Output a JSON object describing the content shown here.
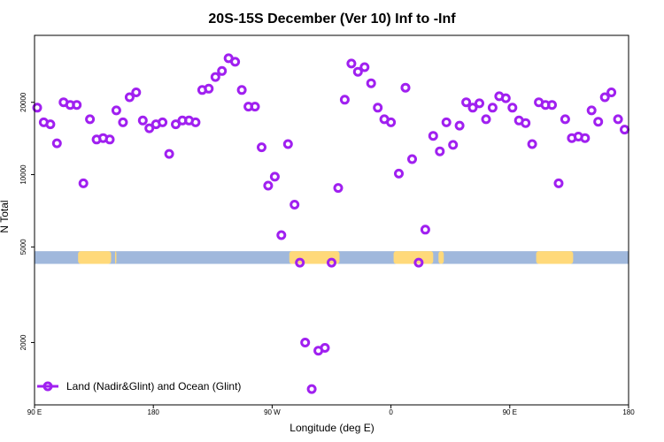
{
  "chart_data": {
    "type": "scatter",
    "title": "20S-15S December (Ver 10)   Inf to -Inf",
    "xlabel": "Longitude (deg E)",
    "ylabel": "N Total",
    "x_ticks": [
      {
        "value": 90,
        "label": "90 E"
      },
      {
        "value": 180,
        "label": "180"
      },
      {
        "value": 270,
        "label": "90 W"
      },
      {
        "value": 360,
        "label": "0"
      },
      {
        "value": 450,
        "label": "90 E"
      },
      {
        "value": 540,
        "label": "180"
      }
    ],
    "xlim": [
      90,
      540
    ],
    "y_scale": "log",
    "y_ticks": [
      2000,
      5000,
      10000,
      20000
    ],
    "ylim": [
      1100,
      38000
    ],
    "grid": false,
    "legend_position": "bottom-left",
    "series": [
      {
        "name": "Land (Nadir&Glint) and Ocean (Glint)",
        "color": "#a020f0",
        "points": [
          [
            92,
            19000
          ],
          [
            97,
            16500
          ],
          [
            102,
            16200
          ],
          [
            107,
            13500
          ],
          [
            112,
            20000
          ],
          [
            117,
            19500
          ],
          [
            122,
            19500
          ],
          [
            127,
            9200
          ],
          [
            132,
            17000
          ],
          [
            137,
            14000
          ],
          [
            142,
            14200
          ],
          [
            147,
            14000
          ],
          [
            152,
            18500
          ],
          [
            157,
            16500
          ],
          [
            162,
            21000
          ],
          [
            167,
            22000
          ],
          [
            172,
            16800
          ],
          [
            177,
            15600
          ],
          [
            182,
            16200
          ],
          [
            187,
            16500
          ],
          [
            192,
            12200
          ],
          [
            197,
            16200
          ],
          [
            202,
            16800
          ],
          [
            207,
            16800
          ],
          [
            212,
            16500
          ],
          [
            217,
            22500
          ],
          [
            222,
            22800
          ],
          [
            227,
            25500
          ],
          [
            232,
            27000
          ],
          [
            237,
            30500
          ],
          [
            242,
            29500
          ],
          [
            247,
            22500
          ],
          [
            252,
            19200
          ],
          [
            257,
            19200
          ],
          [
            262,
            13000
          ],
          [
            267,
            9000
          ],
          [
            272,
            9800
          ],
          [
            277,
            5600
          ],
          [
            282,
            13400
          ],
          [
            287,
            7500
          ],
          [
            291,
            4300
          ],
          [
            295,
            2000
          ],
          [
            300,
            1280
          ],
          [
            305,
            1850
          ],
          [
            310,
            1900
          ],
          [
            315,
            4300
          ],
          [
            320,
            8800
          ],
          [
            325,
            20500
          ],
          [
            330,
            29000
          ],
          [
            335,
            26800
          ],
          [
            340,
            28000
          ],
          [
            345,
            24000
          ],
          [
            350,
            19000
          ],
          [
            355,
            17000
          ],
          [
            360,
            16500
          ],
          [
            366,
            10100
          ],
          [
            371,
            23000
          ],
          [
            376,
            11600
          ],
          [
            381,
            4300
          ],
          [
            386,
            5900
          ],
          [
            392,
            14500
          ],
          [
            397,
            12500
          ],
          [
            402,
            16500
          ],
          [
            407,
            13300
          ],
          [
            412,
            16000
          ],
          [
            417,
            20000
          ],
          [
            422,
            19000
          ],
          [
            427,
            19800
          ],
          [
            432,
            17000
          ],
          [
            437,
            19000
          ],
          [
            442,
            21200
          ],
          [
            447,
            20800
          ],
          [
            452,
            19000
          ],
          [
            457,
            16800
          ],
          [
            462,
            16400
          ],
          [
            467,
            13400
          ],
          [
            472,
            20000
          ],
          [
            477,
            19500
          ],
          [
            482,
            19500
          ],
          [
            487,
            9200
          ],
          [
            492,
            17000
          ],
          [
            497,
            14200
          ],
          [
            502,
            14400
          ],
          [
            507,
            14200
          ],
          [
            512,
            18500
          ],
          [
            517,
            16600
          ],
          [
            522,
            21000
          ],
          [
            527,
            22000
          ],
          [
            532,
            17000
          ],
          [
            537,
            15400
          ]
        ]
      },
      {
        "name": "",
        "type": "area",
        "color": "#a0b8dc",
        "band": [
          4250,
          4800
        ],
        "x_range": [
          90,
          540
        ]
      },
      {
        "name": "",
        "type": "area",
        "color": "#ffd97a",
        "band": [
          4250,
          4800
        ],
        "x_ranges": [
          [
            123,
            148
          ],
          [
            151,
            152
          ],
          [
            283,
            321
          ],
          [
            362,
            392
          ],
          [
            396,
            400
          ],
          [
            470,
            498
          ]
        ]
      }
    ]
  }
}
